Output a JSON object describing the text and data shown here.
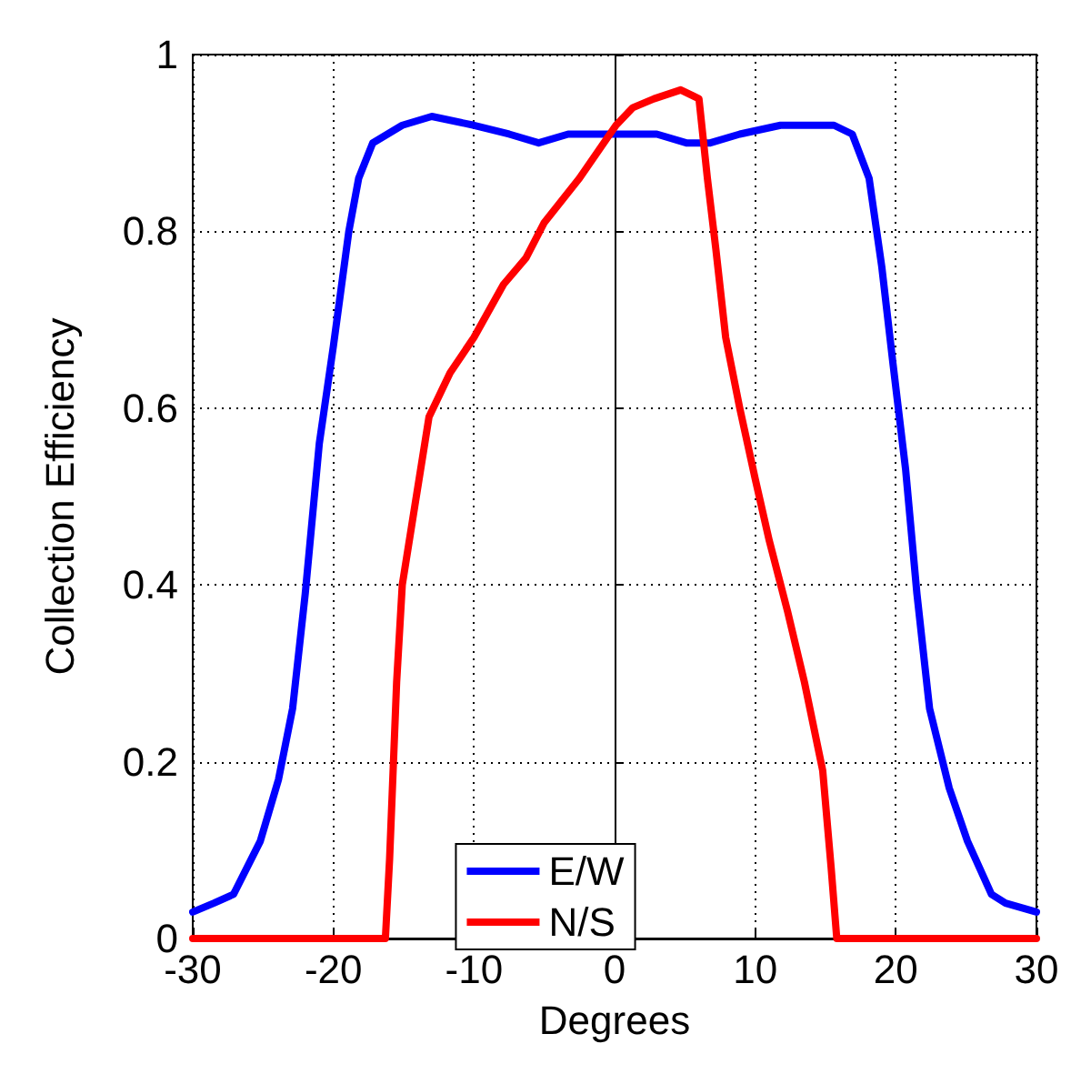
{
  "chart_data": {
    "type": "line",
    "xlabel": "Degrees",
    "ylabel": "Collection Efficiency",
    "xlim": [
      -30,
      30
    ],
    "xticks": [
      -30,
      -20,
      -10,
      0,
      10,
      20,
      30
    ],
    "ylim": [
      0,
      1
    ],
    "yticks": [
      0,
      0.2,
      0.4,
      0.6,
      0.8,
      1
    ],
    "grid": true,
    "legend": "bottom",
    "marker": "none",
    "line_style": "solid",
    "series": [
      {
        "name": "E/W",
        "color": "#0000ff",
        "x": [
          -30,
          -28.5,
          -27.1,
          -25.2,
          -23.9,
          -22.9,
          -22,
          -21,
          -20,
          -18.9,
          -18.2,
          -17.2,
          -15.1,
          -13,
          -10,
          -7.5,
          -5.4,
          -3.3,
          -1.6,
          0.5,
          3,
          5.1,
          6.8,
          8.9,
          11.8,
          13.7,
          15.6,
          16.9,
          18.1,
          19,
          19.8,
          20.7,
          21.5,
          22.4,
          23.8,
          25.1,
          26.8,
          27.8,
          30
        ],
        "values": [
          0.03,
          0.04,
          0.05,
          0.11,
          0.18,
          0.26,
          0.39,
          0.56,
          0.67,
          0.8,
          0.86,
          0.9,
          0.92,
          0.93,
          0.92,
          0.91,
          0.9,
          0.91,
          0.91,
          0.91,
          0.91,
          0.9,
          0.9,
          0.91,
          0.92,
          0.92,
          0.92,
          0.91,
          0.86,
          0.76,
          0.65,
          0.53,
          0.39,
          0.26,
          0.17,
          0.11,
          0.05,
          0.04,
          0.03
        ]
      },
      {
        "name": "N/S",
        "color": "#ff0000",
        "x": [
          -30,
          -16.3,
          -16,
          -15.5,
          -15.1,
          -14.2,
          -13.2,
          -11.7,
          -10,
          -7.9,
          -6.3,
          -5,
          -2.5,
          0.1,
          1.3,
          2.8,
          4.7,
          6,
          6.6,
          7.2,
          7.9,
          8.9,
          10,
          11,
          12.3,
          13.5,
          14.8,
          15.4,
          15.8,
          30
        ],
        "values": [
          0,
          0,
          0.09,
          0.29,
          0.4,
          0.49,
          0.59,
          0.64,
          0.68,
          0.74,
          0.77,
          0.81,
          0.86,
          0.92,
          0.94,
          0.95,
          0.96,
          0.95,
          0.86,
          0.78,
          0.68,
          0.6,
          0.52,
          0.45,
          0.37,
          0.29,
          0.19,
          0.08,
          0,
          0
        ]
      }
    ]
  }
}
